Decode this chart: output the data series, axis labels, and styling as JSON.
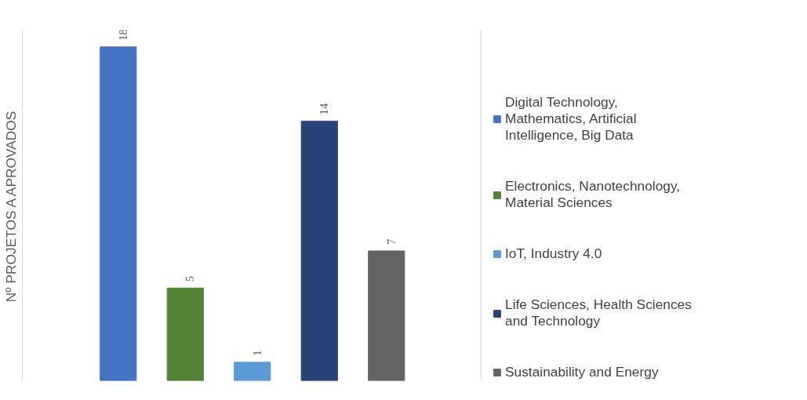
{
  "chart_data": {
    "type": "bar",
    "stacked": true,
    "ylabel": "Nº PROJETOS A APROVADOS",
    "categories": [
      null,
      null,
      null,
      null,
      null
    ],
    "series": [
      {
        "name": "Digital Technology, Mathematics, Artificial Intelligence, Big Data",
        "color": "#4472c4",
        "values": [
          18,
          null,
          null,
          null,
          null
        ]
      },
      {
        "name": "Electronics, Nanotechnology, Material Sciences",
        "color": "#548235",
        "values": [
          null,
          5,
          null,
          null,
          null
        ]
      },
      {
        "name": "IoT, Industry 4.0",
        "color": "#5b9bd5",
        "values": [
          null,
          null,
          1,
          null,
          null
        ]
      },
      {
        "name": "Life Sciences, Health Sciences and Technology",
        "color": "#264478",
        "values": [
          null,
          null,
          null,
          14,
          null
        ]
      },
      {
        "name": "Sustainability and Energy",
        "color": "#636363",
        "values": [
          null,
          null,
          null,
          null,
          7
        ]
      }
    ],
    "data_labels": true,
    "legend": "right"
  }
}
